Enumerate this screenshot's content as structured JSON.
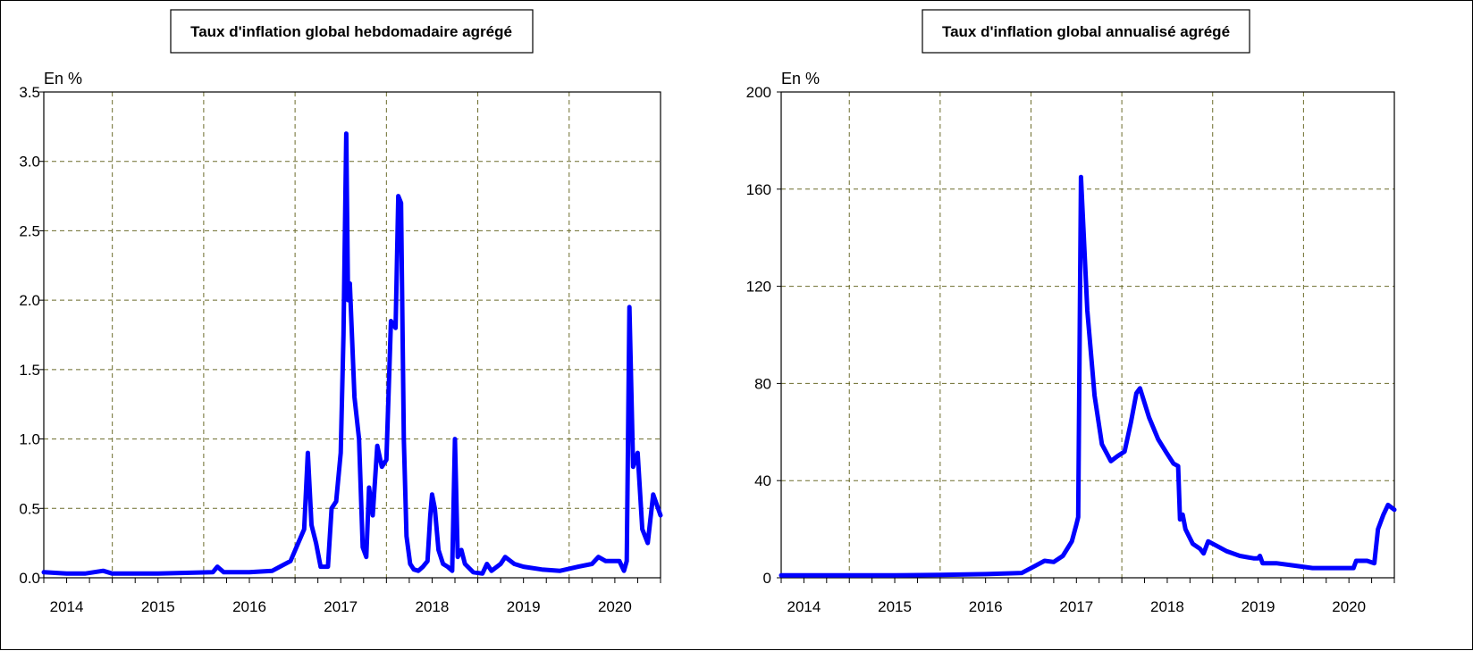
{
  "chart_data": [
    {
      "type": "line",
      "title": "Taux d'inflation global hebdomadaire agrégé",
      "ylabel": "En %",
      "ylim": [
        0,
        3.5
      ],
      "yticks": [
        "0.0",
        "0.5",
        "1.0",
        "1.5",
        "2.0",
        "2.5",
        "3.0",
        "3.5"
      ],
      "xlim": [
        2013.75,
        2020.5
      ],
      "x_labels": [
        "2014",
        "2015",
        "2016",
        "2017",
        "2018",
        "2019",
        "2020"
      ],
      "grid": true,
      "series": [
        {
          "color": "#0000ff",
          "points": [
            [
              2013.75,
              0.04
            ],
            [
              2014.0,
              0.03
            ],
            [
              2014.2,
              0.03
            ],
            [
              2014.4,
              0.05
            ],
            [
              2014.5,
              0.03
            ],
            [
              2015.0,
              0.03
            ],
            [
              2015.6,
              0.04
            ],
            [
              2015.65,
              0.08
            ],
            [
              2015.72,
              0.04
            ],
            [
              2016.0,
              0.04
            ],
            [
              2016.25,
              0.05
            ],
            [
              2016.45,
              0.12
            ],
            [
              2016.6,
              0.35
            ],
            [
              2016.64,
              0.9
            ],
            [
              2016.68,
              0.38
            ],
            [
              2016.73,
              0.25
            ],
            [
              2016.78,
              0.08
            ],
            [
              2016.86,
              0.08
            ],
            [
              2016.9,
              0.5
            ],
            [
              2016.95,
              0.55
            ],
            [
              2017.0,
              0.9
            ],
            [
              2017.03,
              1.75
            ],
            [
              2017.06,
              3.2
            ],
            [
              2017.08,
              2.0
            ],
            [
              2017.1,
              2.12
            ],
            [
              2017.15,
              1.3
            ],
            [
              2017.2,
              1.0
            ],
            [
              2017.24,
              0.22
            ],
            [
              2017.28,
              0.15
            ],
            [
              2017.31,
              0.65
            ],
            [
              2017.35,
              0.45
            ],
            [
              2017.4,
              0.95
            ],
            [
              2017.45,
              0.8
            ],
            [
              2017.5,
              0.85
            ],
            [
              2017.55,
              1.85
            ],
            [
              2017.6,
              1.8
            ],
            [
              2017.63,
              2.75
            ],
            [
              2017.66,
              2.7
            ],
            [
              2017.69,
              1.0
            ],
            [
              2017.72,
              0.3
            ],
            [
              2017.76,
              0.1
            ],
            [
              2017.8,
              0.06
            ],
            [
              2017.85,
              0.05
            ],
            [
              2017.9,
              0.08
            ],
            [
              2017.95,
              0.12
            ],
            [
              2017.98,
              0.45
            ],
            [
              2018.0,
              0.6
            ],
            [
              2018.03,
              0.5
            ],
            [
              2018.07,
              0.2
            ],
            [
              2018.12,
              0.1
            ],
            [
              2018.17,
              0.08
            ],
            [
              2018.22,
              0.05
            ],
            [
              2018.25,
              1.0
            ],
            [
              2018.28,
              0.15
            ],
            [
              2018.32,
              0.2
            ],
            [
              2018.36,
              0.1
            ],
            [
              2018.45,
              0.04
            ],
            [
              2018.55,
              0.03
            ],
            [
              2018.6,
              0.1
            ],
            [
              2018.65,
              0.05
            ],
            [
              2018.75,
              0.1
            ],
            [
              2018.8,
              0.15
            ],
            [
              2018.9,
              0.1
            ],
            [
              2019.0,
              0.08
            ],
            [
              2019.2,
              0.06
            ],
            [
              2019.4,
              0.05
            ],
            [
              2019.6,
              0.08
            ],
            [
              2019.75,
              0.1
            ],
            [
              2019.82,
              0.15
            ],
            [
              2019.9,
              0.12
            ],
            [
              2020.05,
              0.12
            ],
            [
              2020.1,
              0.05
            ],
            [
              2020.13,
              0.12
            ],
            [
              2020.16,
              1.95
            ],
            [
              2020.2,
              0.8
            ],
            [
              2020.25,
              0.9
            ],
            [
              2020.3,
              0.35
            ],
            [
              2020.36,
              0.25
            ],
            [
              2020.42,
              0.6
            ],
            [
              2020.5,
              0.45
            ]
          ]
        }
      ]
    },
    {
      "type": "line",
      "title": "Taux d'inflation global annualisé agrégé",
      "ylabel": "En %",
      "ylim": [
        0,
        200
      ],
      "yticks": [
        "0",
        "40",
        "80",
        "120",
        "160",
        "200"
      ],
      "xlim": [
        2013.75,
        2020.5
      ],
      "x_labels": [
        "2014",
        "2015",
        "2016",
        "2017",
        "2018",
        "2019",
        "2020"
      ],
      "grid": true,
      "series": [
        {
          "color": "#0000ff",
          "points": [
            [
              2013.75,
              1
            ],
            [
              2014.5,
              1
            ],
            [
              2015.0,
              1
            ],
            [
              2015.5,
              1.2
            ],
            [
              2016.0,
              1.5
            ],
            [
              2016.4,
              2
            ],
            [
              2016.55,
              5
            ],
            [
              2016.65,
              7
            ],
            [
              2016.75,
              6.5
            ],
            [
              2016.85,
              9
            ],
            [
              2016.95,
              15
            ],
            [
              2017.0,
              22
            ],
            [
              2017.02,
              25
            ],
            [
              2017.05,
              165
            ],
            [
              2017.12,
              110
            ],
            [
              2017.2,
              75
            ],
            [
              2017.28,
              55
            ],
            [
              2017.38,
              48
            ],
            [
              2017.45,
              50
            ],
            [
              2017.53,
              52
            ],
            [
              2017.6,
              64
            ],
            [
              2017.66,
              76
            ],
            [
              2017.7,
              78
            ],
            [
              2017.8,
              66
            ],
            [
              2017.9,
              57
            ],
            [
              2018.0,
              51
            ],
            [
              2018.07,
              47
            ],
            [
              2018.12,
              46
            ],
            [
              2018.14,
              24
            ],
            [
              2018.17,
              26
            ],
            [
              2018.2,
              20
            ],
            [
              2018.28,
              14
            ],
            [
              2018.36,
              12
            ],
            [
              2018.4,
              10
            ],
            [
              2018.45,
              15
            ],
            [
              2018.55,
              13
            ],
            [
              2018.65,
              11
            ],
            [
              2018.8,
              9
            ],
            [
              2018.95,
              8
            ],
            [
              2019.0,
              8
            ],
            [
              2019.02,
              9
            ],
            [
              2019.05,
              6
            ],
            [
              2019.2,
              6
            ],
            [
              2019.4,
              5
            ],
            [
              2019.6,
              4
            ],
            [
              2019.8,
              4
            ],
            [
              2020.05,
              4
            ],
            [
              2020.08,
              7
            ],
            [
              2020.2,
              7
            ],
            [
              2020.28,
              6
            ],
            [
              2020.32,
              20
            ],
            [
              2020.38,
              26
            ],
            [
              2020.43,
              30
            ],
            [
              2020.5,
              28
            ]
          ]
        }
      ]
    }
  ]
}
